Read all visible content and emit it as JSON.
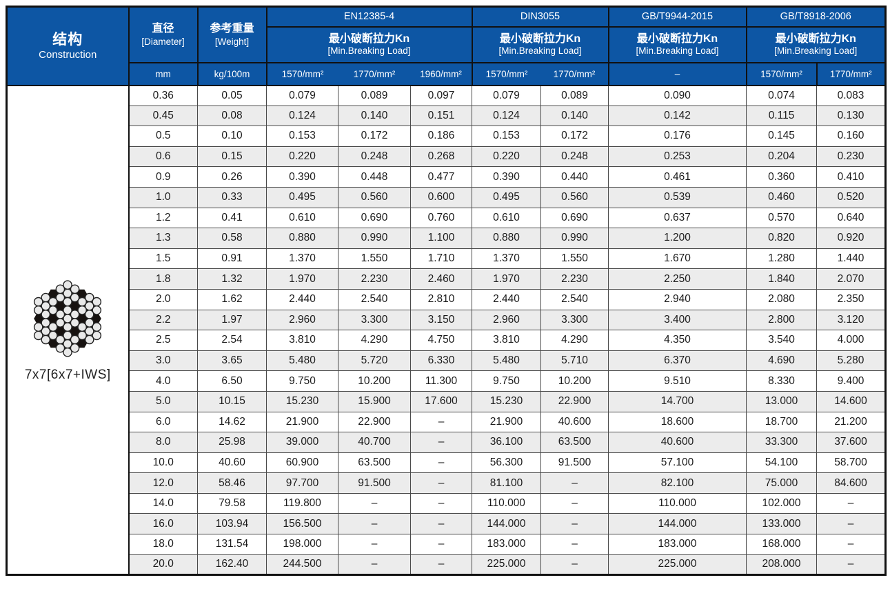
{
  "colors": {
    "header_blue": "#0d56a4",
    "row_alt_gray": "#ececec",
    "grid_line": "#4a4a4a",
    "outer_border": "#111111",
    "header_text": "#ffffff",
    "body_text": "#1b1b1b"
  },
  "header": {
    "construction": {
      "zh": "结构",
      "en": "Construction"
    },
    "diameter": {
      "zh": "直径",
      "en": "[Diameter]",
      "unit": "mm"
    },
    "weight": {
      "zh": "参考重量",
      "en": "[Weight]",
      "unit": "kg/100m"
    },
    "groups": [
      {
        "name": "EN12385-4",
        "load_zh": "最小破断拉力Kn",
        "load_en": "[Min.Breaking Load]",
        "units": [
          "1570/mm²",
          "1770/mm²",
          "1960/mm²"
        ]
      },
      {
        "name": "DIN3055",
        "load_zh": "最小破断拉力Kn",
        "load_en": "[Min.Breaking Load]",
        "units": [
          "1570/mm²",
          "1770/mm²"
        ]
      },
      {
        "name": "GB/T9944-2015",
        "load_zh": "最小破断拉力Kn",
        "load_en": "[Min.Breaking Load]",
        "units": [
          "–"
        ]
      },
      {
        "name": "GB/T8918-2006",
        "load_zh": "最小破断拉力Kn",
        "load_en": "[Min.Breaking Load]",
        "units": [
          "1570/mm²",
          "1770/mm²"
        ]
      }
    ]
  },
  "construction_label": "7x7[6x7+IWS]",
  "table": {
    "columns": [
      "diameter_mm",
      "weight_kg_100m",
      "en_1570",
      "en_1770",
      "en_1960",
      "din_1570",
      "din_1770",
      "gbt9944",
      "gbt8918_1570",
      "gbt8918_1770"
    ],
    "rows": [
      [
        "0.36",
        "0.05",
        "0.079",
        "0.089",
        "0.097",
        "0.079",
        "0.089",
        "0.090",
        "0.074",
        "0.083"
      ],
      [
        "0.45",
        "0.08",
        "0.124",
        "0.140",
        "0.151",
        "0.124",
        "0.140",
        "0.142",
        "0.115",
        "0.130"
      ],
      [
        "0.5",
        "0.10",
        "0.153",
        "0.172",
        "0.186",
        "0.153",
        "0.172",
        "0.176",
        "0.145",
        "0.160"
      ],
      [
        "0.6",
        "0.15",
        "0.220",
        "0.248",
        "0.268",
        "0.220",
        "0.248",
        "0.253",
        "0.204",
        "0.230"
      ],
      [
        "0.9",
        "0.26",
        "0.390",
        "0.448",
        "0.477",
        "0.390",
        "0.440",
        "0.461",
        "0.360",
        "0.410"
      ],
      [
        "1.0",
        "0.33",
        "0.495",
        "0.560",
        "0.600",
        "0.495",
        "0.560",
        "0.539",
        "0.460",
        "0.520"
      ],
      [
        "1.2",
        "0.41",
        "0.610",
        "0.690",
        "0.760",
        "0.610",
        "0.690",
        "0.637",
        "0.570",
        "0.640"
      ],
      [
        "1.3",
        "0.58",
        "0.880",
        "0.990",
        "1.100",
        "0.880",
        "0.990",
        "1.200",
        "0.820",
        "0.920"
      ],
      [
        "1.5",
        "0.91",
        "1.370",
        "1.550",
        "1.710",
        "1.370",
        "1.550",
        "1.670",
        "1.280",
        "1.440"
      ],
      [
        "1.8",
        "1.32",
        "1.970",
        "2.230",
        "2.460",
        "1.970",
        "2.230",
        "2.250",
        "1.840",
        "2.070"
      ],
      [
        "2.0",
        "1.62",
        "2.440",
        "2.540",
        "2.810",
        "2.440",
        "2.540",
        "2.940",
        "2.080",
        "2.350"
      ],
      [
        "2.2",
        "1.97",
        "2.960",
        "3.300",
        "3.150",
        "2.960",
        "3.300",
        "3.400",
        "2.800",
        "3.120"
      ],
      [
        "2.5",
        "2.54",
        "3.810",
        "4.290",
        "4.750",
        "3.810",
        "4.290",
        "4.350",
        "3.540",
        "4.000"
      ],
      [
        "3.0",
        "3.65",
        "5.480",
        "5.720",
        "6.330",
        "5.480",
        "5.710",
        "6.370",
        "4.690",
        "5.280"
      ],
      [
        "4.0",
        "6.50",
        "9.750",
        "10.200",
        "11.300",
        "9.750",
        "10.200",
        "9.510",
        "8.330",
        "9.400"
      ],
      [
        "5.0",
        "10.15",
        "15.230",
        "15.900",
        "17.600",
        "15.230",
        "22.900",
        "14.700",
        "13.000",
        "14.600"
      ],
      [
        "6.0",
        "14.62",
        "21.900",
        "22.900",
        "–",
        "21.900",
        "40.600",
        "18.600",
        "18.700",
        "21.200"
      ],
      [
        "8.0",
        "25.98",
        "39.000",
        "40.700",
        "–",
        "36.100",
        "63.500",
        "40.600",
        "33.300",
        "37.600"
      ],
      [
        "10.0",
        "40.60",
        "60.900",
        "63.500",
        "–",
        "56.300",
        "91.500",
        "57.100",
        "54.100",
        "58.700"
      ],
      [
        "12.0",
        "58.46",
        "97.700",
        "91.500",
        "–",
        "81.100",
        "–",
        "82.100",
        "75.000",
        "84.600"
      ],
      [
        "14.0",
        "79.58",
        "119.800",
        "–",
        "–",
        "110.000",
        "–",
        "110.000",
        "102.000",
        "–"
      ],
      [
        "16.0",
        "103.94",
        "156.500",
        "–",
        "–",
        "144.000",
        "–",
        "144.000",
        "133.000",
        "–"
      ],
      [
        "18.0",
        "131.54",
        "198.000",
        "–",
        "–",
        "183.000",
        "–",
        "183.000",
        "168.000",
        "–"
      ],
      [
        "20.0",
        "162.40",
        "244.500",
        "–",
        "–",
        "225.000",
        "–",
        "225.000",
        "208.000",
        "–"
      ]
    ]
  }
}
